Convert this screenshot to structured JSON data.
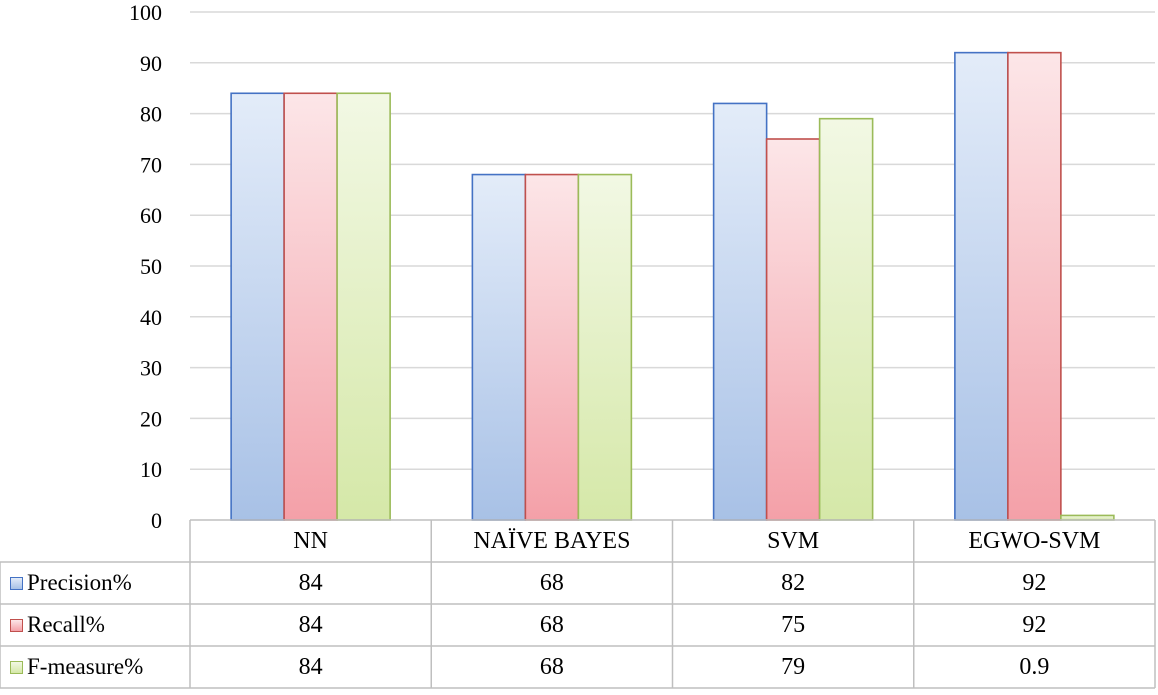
{
  "chart_data": {
    "type": "bar",
    "title": "",
    "xlabel": "",
    "ylabel": "",
    "ylim": [
      0,
      100
    ],
    "yticks": [
      0,
      10,
      20,
      30,
      40,
      50,
      60,
      70,
      80,
      90,
      100
    ],
    "grid": true,
    "legend": "data-table",
    "categories": [
      "NN",
      "NAÏVE BAYES",
      "SVM",
      "EGWO-SVM"
    ],
    "series": [
      {
        "name": "Precision%",
        "values": [
          84,
          68,
          82,
          92
        ],
        "labels": [
          "84",
          "68",
          "82",
          "92"
        ],
        "color": "#4472C4",
        "fill_light": "#e3ecf9",
        "fill_dark": "#a8c1e6"
      },
      {
        "name": "Recall%",
        "values": [
          84,
          68,
          75,
          92
        ],
        "labels": [
          "84",
          "68",
          "75",
          "92"
        ],
        "color": "#C0504D",
        "fill_light": "#fce6e8",
        "fill_dark": "#f4a0a8"
      },
      {
        "name": "F-measure%",
        "values": [
          84,
          68,
          79,
          0.9
        ],
        "labels": [
          "84",
          "68",
          "79",
          "0.9"
        ],
        "color": "#9BBB59",
        "fill_light": "#f2f8e4",
        "fill_dark": "#d5e8a8"
      }
    ]
  }
}
